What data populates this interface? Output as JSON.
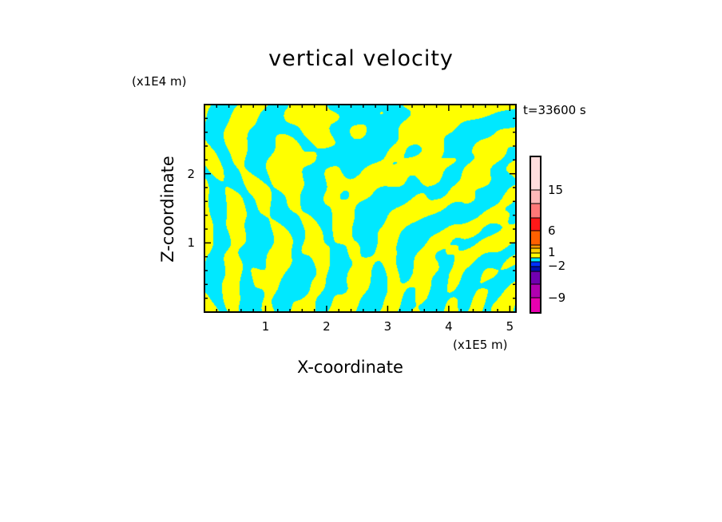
{
  "chart_data": {
    "type": "heatmap",
    "title": "vertical velocity",
    "xlabel": "X-coordinate",
    "ylabel": "Z-coordinate",
    "x_unit": "(x1E5 m)",
    "y_unit": "(x1E4 m)",
    "time_label": "t=33600 s",
    "xlim": [
      0,
      5.1
    ],
    "ylim": [
      0,
      3
    ],
    "xticks": [
      "1",
      "2",
      "3",
      "4",
      "5"
    ],
    "yticks": [
      "1",
      "2"
    ],
    "colorbar": {
      "colors": [
        "#ffdddd",
        "#ffb8b8",
        "#ff7878",
        "#ff1818",
        "#ff6000",
        "#ff9800",
        "#ffd000",
        "#ffff00",
        "#00e8ff",
        "#0030ff",
        "#0010b0",
        "#7000b0",
        "#b000b0",
        "#e800b0"
      ],
      "labels": [
        "15",
        "6",
        "1",
        "−2",
        "−9"
      ]
    },
    "dominant_colors": [
      "#ffff00",
      "#00e8ff"
    ]
  }
}
